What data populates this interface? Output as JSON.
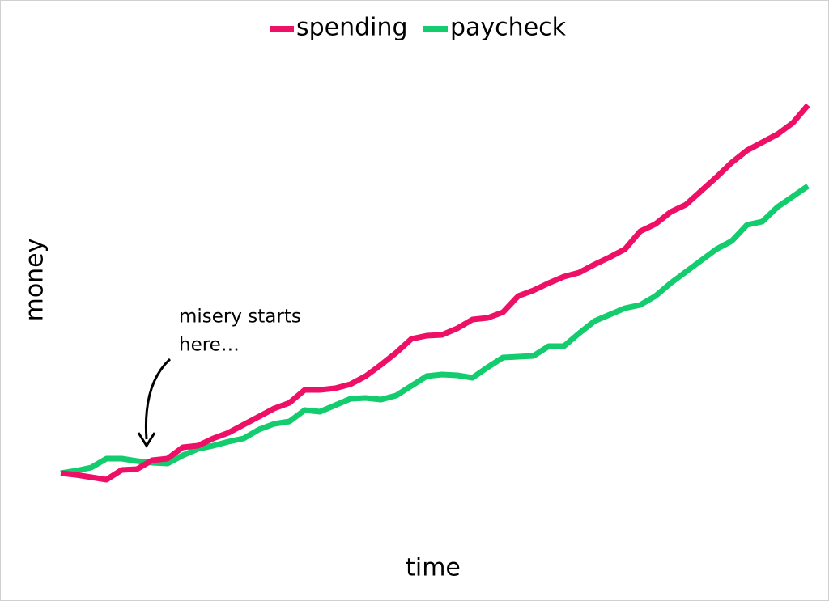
{
  "chart_data": {
    "type": "line",
    "x_label": "time",
    "y_label": "money",
    "annotation": [
      "misery starts",
      "here…"
    ],
    "ylim": [
      0,
      100
    ],
    "series": [
      {
        "name": "spending",
        "color": "#ee1066",
        "values": [
          3,
          2.6,
          2,
          1.4,
          3.8,
          4,
          6.2,
          6.6,
          9.4,
          9.8,
          11.6,
          13,
          15,
          17,
          19,
          20.4,
          23.6,
          23.6,
          24,
          25,
          27,
          29.8,
          32.8,
          36.2,
          37,
          37.2,
          38.8,
          41,
          41.4,
          42.8,
          46.8,
          48.2,
          50,
          51.6,
          52.6,
          54.6,
          56.4,
          58.4,
          62.8,
          64.6,
          67.6,
          69.4,
          72.8,
          76.2,
          79.8,
          82.8,
          84.8,
          86.8,
          89.6,
          94
        ]
      },
      {
        "name": "paycheck",
        "color": "#12cc6e",
        "values": [
          3,
          3.6,
          4.4,
          6.6,
          6.6,
          6,
          5.6,
          5.4,
          7.4,
          9,
          9.8,
          10.8,
          11.6,
          13.8,
          15.2,
          15.8,
          18.6,
          18.2,
          19.8,
          21.4,
          21.6,
          21.2,
          22.2,
          24.6,
          27,
          27.4,
          27.2,
          26.6,
          29.2,
          31.6,
          31.8,
          32,
          34.4,
          34.4,
          37.6,
          40.6,
          42.2,
          43.8,
          44.6,
          46.8,
          50,
          52.8,
          55.6,
          58.4,
          60.4,
          64.4,
          65.2,
          68.8,
          71.4,
          74
        ]
      }
    ]
  }
}
